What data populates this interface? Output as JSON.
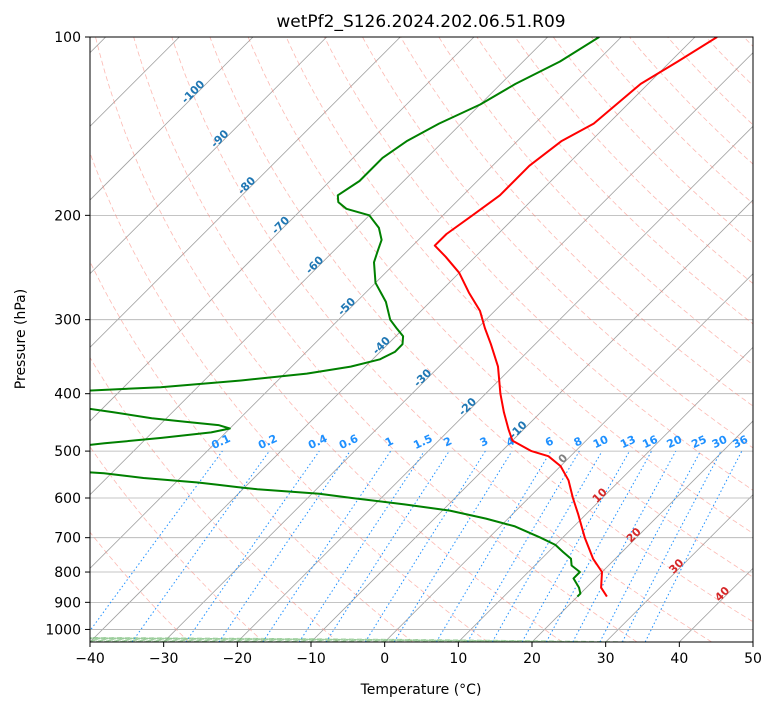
{
  "chart_data": {
    "type": "line",
    "title": "wetPf2_S126.2024.202.06.51.R09",
    "xlabel": "Temperature (°C)",
    "ylabel": "Pressure (hPa)",
    "xlim": [
      -40,
      50
    ],
    "ylim": [
      1050,
      100
    ],
    "y_scale": "log",
    "grid": true,
    "x_ticks": [
      "−40",
      "−30",
      "−20",
      "−10",
      "0",
      "10",
      "20",
      "30",
      "40",
      "50"
    ],
    "y_ticks": [
      "100",
      "200",
      "300",
      "400",
      "500",
      "600",
      "700",
      "800",
      "900",
      "1000"
    ],
    "colors": {
      "temperature": "#ff0000",
      "dewpoint": "#008000",
      "isotherm_label": "#1f77b4",
      "mixing_ratio": "#1e90ff",
      "dry_adiabat": "#fa8072",
      "moist_adiabat": "#7fbf7f",
      "thetae_label": "#d62728"
    },
    "isotherm_labels": [
      "-100",
      "-90",
      "-80",
      "-70",
      "-60",
      "-50",
      "-40",
      "-30",
      "-20",
      "-10",
      "0",
      "10",
      "20",
      "30",
      "40"
    ],
    "mixing_ratio_labels": [
      "0.1",
      "0.2",
      "0.4",
      "0.6",
      "1",
      "1.5",
      "2",
      "3",
      "4",
      "6",
      "8",
      "10",
      "13",
      "16",
      "20",
      "25",
      "30",
      "36"
    ],
    "series": [
      {
        "variable": "temperature",
        "pressure": [
          880,
          850,
          800,
          760,
          700,
          640,
          600,
          560,
          530,
          510,
          500,
          480,
          460,
          430,
          400,
          360,
          330,
          310,
          290,
          270,
          250,
          235,
          225,
          215,
          200,
          185,
          165,
          150,
          140,
          120,
          110,
          100
        ],
        "temp": [
          24,
          22,
          20,
          17,
          13,
          9,
          6,
          3,
          0,
          -3,
          -6,
          -10,
          -12,
          -15,
          -18,
          -22,
          -26,
          -29,
          -32,
          -36,
          -40,
          -44,
          -47,
          -47,
          -46,
          -45,
          -45,
          -44,
          -42,
          -41,
          -39,
          -37
        ]
      },
      {
        "variable": "dewpoint",
        "pressure": [
          880,
          870,
          850,
          820,
          800,
          780,
          760,
          740,
          720,
          700,
          670,
          650,
          630,
          615,
          600,
          590,
          580,
          575,
          570,
          565,
          560,
          555,
          550,
          545,
          540,
          520,
          500,
          485,
          475,
          465,
          458,
          452,
          446,
          440,
          430,
          410,
          400,
          395,
          390,
          385,
          380,
          370,
          360,
          350,
          340,
          330,
          320,
          310,
          300,
          280,
          260,
          240,
          230,
          220,
          210,
          200,
          195,
          190,
          185,
          175,
          160,
          150,
          140,
          130,
          120,
          110,
          100
        ],
        "dewp": [
          20,
          20,
          19,
          17,
          17,
          15,
          14,
          12,
          10,
          7,
          2,
          -3,
          -9,
          -16,
          -24,
          -29,
          -38,
          -41,
          -44,
          -47,
          -51,
          -55,
          -58,
          -61,
          -66,
          -78,
          -74,
          -65,
          -58,
          -52,
          -50,
          -52,
          -57,
          -62,
          -68,
          -81,
          -85,
          -74,
          -65,
          -60,
          -55,
          -47,
          -42,
          -39,
          -38,
          -38,
          -39,
          -41,
          -43,
          -46,
          -50,
          -53,
          -54,
          -55,
          -57,
          -60,
          -64,
          -66,
          -67,
          -66,
          -66,
          -65,
          -63,
          -60,
          -58,
          -55,
          -53
        ]
      }
    ]
  }
}
